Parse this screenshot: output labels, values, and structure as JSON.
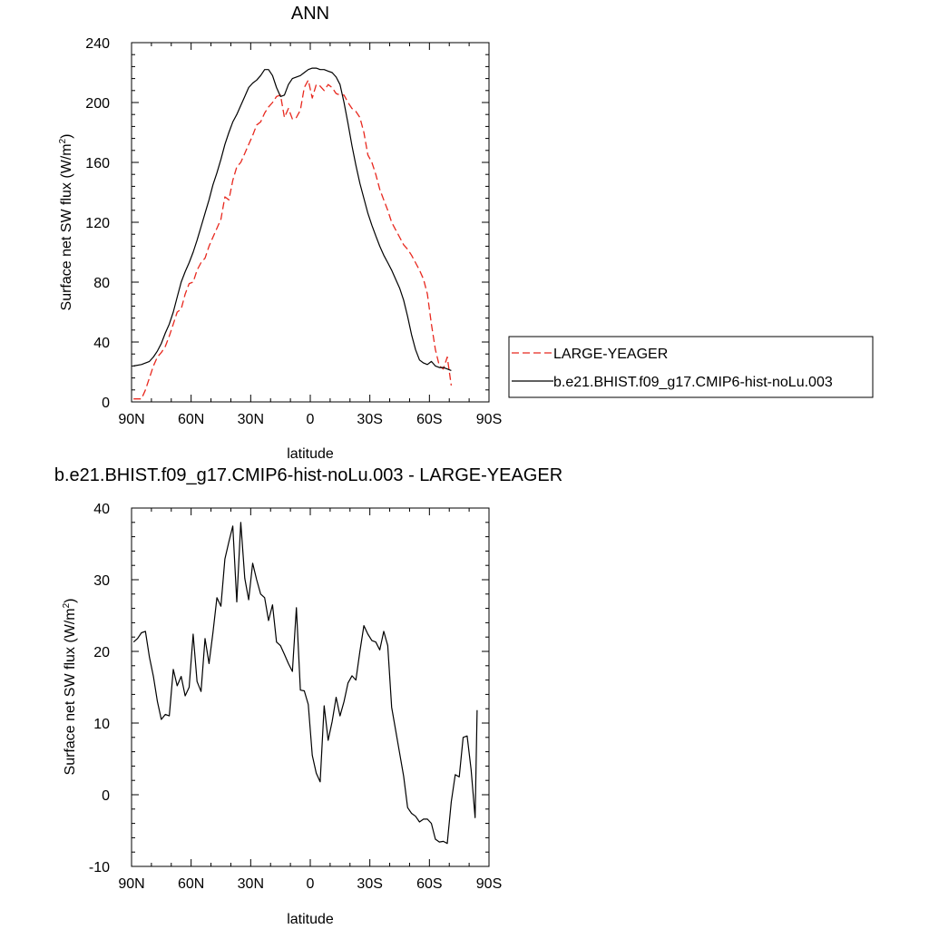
{
  "chart_data": [
    {
      "type": "line",
      "title": "ANN",
      "xlabel": "latitude",
      "ylabel_main": "Surface net SW flux (W/m",
      "ylabel_sup": "2",
      "ylabel_close": ")",
      "xlim": [
        90,
        -90
      ],
      "ylim": [
        0,
        240
      ],
      "x_ticks": [
        90,
        60,
        30,
        0,
        -30,
        -60,
        -90
      ],
      "x_tick_labels": [
        "90N",
        "60N",
        "30N",
        "0",
        "30S",
        "60S",
        "90S"
      ],
      "y_ticks": [
        0,
        40,
        80,
        120,
        160,
        200,
        240
      ],
      "y_tick_labels": [
        "0",
        "40",
        "80",
        "120",
        "160",
        "200",
        "240"
      ],
      "legend_position": "right",
      "series": [
        {
          "name": "LARGE-YEAGER",
          "color": "#e8281e",
          "dash": "dashed",
          "points": [
            [
              89,
              2
            ],
            [
              87,
              2
            ],
            [
              85,
              2
            ],
            [
              83,
              8
            ],
            [
              81,
              16
            ],
            [
              79,
              24
            ],
            [
              77,
              30
            ],
            [
              75,
              33
            ],
            [
              73,
              37
            ],
            [
              71,
              44
            ],
            [
              69,
              52
            ],
            [
              67,
              60
            ],
            [
              65,
              62
            ],
            [
              63,
              72
            ],
            [
              61,
              79
            ],
            [
              59,
              80
            ],
            [
              57,
              88
            ],
            [
              55,
              93
            ],
            [
              53,
              96
            ],
            [
              51,
              104
            ],
            [
              49,
              110
            ],
            [
              47,
              116
            ],
            [
              45,
              122
            ],
            [
              43,
              137
            ],
            [
              41,
              135
            ],
            [
              39,
              148
            ],
            [
              37,
              157
            ],
            [
              35,
              160
            ],
            [
              33,
              166
            ],
            [
              31,
              172
            ],
            [
              29,
              178
            ],
            [
              27,
              185
            ],
            [
              25,
              187
            ],
            [
              23,
              193
            ],
            [
              21,
              197
            ],
            [
              19,
              200
            ],
            [
              17,
              204
            ],
            [
              15,
              205
            ],
            [
              13,
              190
            ],
            [
              11,
              196
            ],
            [
              9,
              189
            ],
            [
              7,
              190
            ],
            [
              5,
              195
            ],
            [
              3,
              210
            ],
            [
              1,
              215
            ],
            [
              -1,
              203
            ],
            [
              -3,
              212
            ],
            [
              -5,
              211
            ],
            [
              -7,
              208
            ],
            [
              -9,
              212
            ],
            [
              -11,
              210
            ],
            [
              -13,
              206
            ],
            [
              -15,
              205
            ],
            [
              -17,
              205
            ],
            [
              -19,
              200
            ],
            [
              -21,
              196
            ],
            [
              -23,
              194
            ],
            [
              -25,
              190
            ],
            [
              -27,
              180
            ],
            [
              -29,
              165
            ],
            [
              -31,
              160
            ],
            [
              -33,
              152
            ],
            [
              -35,
              142
            ],
            [
              -37,
              135
            ],
            [
              -39,
              128
            ],
            [
              -41,
              120
            ],
            [
              -43,
              115
            ],
            [
              -45,
              110
            ],
            [
              -47,
              105
            ],
            [
              -49,
              102
            ],
            [
              -51,
              98
            ],
            [
              -53,
              93
            ],
            [
              -55,
              88
            ],
            [
              -57,
              82
            ],
            [
              -59,
              72
            ],
            [
              -61,
              52
            ],
            [
              -63,
              35
            ],
            [
              -65,
              24
            ],
            [
              -67,
              22
            ],
            [
              -69,
              30
            ],
            [
              -71,
              11
            ]
          ]
        },
        {
          "name": "b.e21.BHIST.f09_g17.CMIP6-hist-noLu.003",
          "color": "#000000",
          "dash": "solid",
          "points": [
            [
              89,
              24
            ],
            [
              85,
              25
            ],
            [
              81,
              27
            ],
            [
              79,
              30
            ],
            [
              77,
              34
            ],
            [
              75,
              39
            ],
            [
              73,
              46
            ],
            [
              71,
              52
            ],
            [
              69,
              60
            ],
            [
              67,
              70
            ],
            [
              65,
              80
            ],
            [
              63,
              87
            ],
            [
              61,
              93
            ],
            [
              59,
              100
            ],
            [
              57,
              108
            ],
            [
              55,
              117
            ],
            [
              53,
              126
            ],
            [
              51,
              135
            ],
            [
              49,
              145
            ],
            [
              47,
              153
            ],
            [
              45,
              162
            ],
            [
              43,
              172
            ],
            [
              41,
              180
            ],
            [
              39,
              187
            ],
            [
              37,
              192
            ],
            [
              35,
              198
            ],
            [
              33,
              204
            ],
            [
              31,
              210
            ],
            [
              29,
              213
            ],
            [
              27,
              215
            ],
            [
              25,
              218
            ],
            [
              23,
              222
            ],
            [
              21,
              222
            ],
            [
              19,
              218
            ],
            [
              17,
              210
            ],
            [
              15,
              204
            ],
            [
              13,
              205
            ],
            [
              11,
              212
            ],
            [
              9,
              216
            ],
            [
              7,
              217
            ],
            [
              5,
              218
            ],
            [
              3,
              220
            ],
            [
              1,
              222
            ],
            [
              -1,
              223
            ],
            [
              -3,
              223
            ],
            [
              -5,
              222
            ],
            [
              -7,
              222
            ],
            [
              -9,
              221
            ],
            [
              -11,
              220
            ],
            [
              -13,
              217
            ],
            [
              -15,
              212
            ],
            [
              -17,
              200
            ],
            [
              -19,
              186
            ],
            [
              -21,
              171
            ],
            [
              -23,
              158
            ],
            [
              -25,
              146
            ],
            [
              -27,
              136
            ],
            [
              -29,
              126
            ],
            [
              -31,
              118
            ],
            [
              -33,
              111
            ],
            [
              -35,
              104
            ],
            [
              -37,
              98
            ],
            [
              -39,
              93
            ],
            [
              -41,
              88
            ],
            [
              -43,
              82
            ],
            [
              -45,
              76
            ],
            [
              -47,
              68
            ],
            [
              -49,
              57
            ],
            [
              -51,
              45
            ],
            [
              -53,
              35
            ],
            [
              -55,
              28
            ],
            [
              -57,
              26
            ],
            [
              -59,
              25
            ],
            [
              -61,
              27
            ],
            [
              -63,
              24
            ],
            [
              -65,
              23
            ],
            [
              -67,
              23
            ],
            [
              -69,
              22
            ],
            [
              -71,
              21
            ]
          ]
        }
      ]
    },
    {
      "type": "line",
      "title": "b.e21.BHIST.f09_g17.CMIP6-hist-noLu.003 - LARGE-YEAGER",
      "xlabel": "latitude",
      "ylabel_main": "Surface net SW flux (W/m",
      "ylabel_sup": "2",
      "ylabel_close": ")",
      "xlim": [
        90,
        -90
      ],
      "ylim": [
        -10,
        40
      ],
      "x_ticks": [
        90,
        60,
        30,
        0,
        -30,
        -60,
        -90
      ],
      "x_tick_labels": [
        "90N",
        "60N",
        "30N",
        "0",
        "30S",
        "60S",
        "90S"
      ],
      "y_ticks": [
        -10,
        0,
        10,
        20,
        30,
        40
      ],
      "y_tick_labels": [
        "-10",
        "0",
        "10",
        "20",
        "30",
        "40"
      ],
      "series": [
        {
          "color": "#000000",
          "dash": "solid",
          "points": [
            [
              89,
              21.3
            ],
            [
              87,
              21.8
            ],
            [
              85,
              22.6
            ],
            [
              83,
              22.8
            ],
            [
              81,
              19.2
            ],
            [
              79,
              16.5
            ],
            [
              77,
              13
            ],
            [
              75,
              10.5
            ],
            [
              73,
              11.2
            ],
            [
              71,
              11.0
            ],
            [
              69,
              17.5
            ],
            [
              67,
              15.2
            ],
            [
              65,
              16.5
            ],
            [
              63,
              13.8
            ],
            [
              61,
              15
            ],
            [
              59,
              22.4
            ],
            [
              57,
              15.8
            ],
            [
              55,
              14.4
            ],
            [
              53,
              21.8
            ],
            [
              51,
              18.3
            ],
            [
              49,
              22.6
            ],
            [
              47,
              27.5
            ],
            [
              45,
              26.3
            ],
            [
              43,
              32.9
            ],
            [
              41,
              35.3
            ],
            [
              39,
              37.5
            ],
            [
              37,
              26.9
            ],
            [
              35,
              38.0
            ],
            [
              33,
              30.2
            ],
            [
              31,
              27.2
            ],
            [
              29,
              32.3
            ],
            [
              27,
              30.0
            ],
            [
              25,
              28.0
            ],
            [
              23,
              27.5
            ],
            [
              21,
              24.3
            ],
            [
              19,
              26.5
            ],
            [
              17,
              21.3
            ],
            [
              15,
              20.8
            ],
            [
              13,
              19.6
            ],
            [
              11,
              18.3
            ],
            [
              9,
              17.2
            ],
            [
              7,
              26.1
            ],
            [
              5,
              14.6
            ],
            [
              3,
              14.5
            ],
            [
              1,
              12.6
            ],
            [
              -1,
              5.5
            ],
            [
              -3,
              3.0
            ],
            [
              -5,
              1.8
            ],
            [
              -7,
              12.4
            ],
            [
              -9,
              7.6
            ],
            [
              -11,
              10.2
            ],
            [
              -13,
              13.6
            ],
            [
              -15,
              11.0
            ],
            [
              -17,
              13.0
            ],
            [
              -19,
              15.6
            ],
            [
              -21,
              16.6
            ],
            [
              -23,
              16.0
            ],
            [
              -25,
              20.0
            ],
            [
              -27,
              23.6
            ],
            [
              -29,
              22.4
            ],
            [
              -31,
              21.5
            ],
            [
              -33,
              21.3
            ],
            [
              -35,
              20.2
            ],
            [
              -37,
              22.8
            ],
            [
              -39,
              20.8
            ],
            [
              -41,
              12.2
            ],
            [
              -43,
              9.0
            ],
            [
              -45,
              5.8
            ],
            [
              -47,
              2.6
            ],
            [
              -49,
              -1.8
            ],
            [
              -51,
              -2.6
            ],
            [
              -53,
              -3.0
            ],
            [
              -55,
              -3.8
            ],
            [
              -57,
              -3.4
            ],
            [
              -59,
              -3.4
            ],
            [
              -61,
              -4.0
            ],
            [
              -63,
              -6.2
            ],
            [
              -65,
              -6.6
            ],
            [
              -67,
              -6.5
            ],
            [
              -69,
              -6.8
            ],
            [
              -71,
              -1.0
            ],
            [
              -73,
              2.8
            ],
            [
              -75,
              2.5
            ],
            [
              -77,
              8.0
            ],
            [
              -79,
              8.2
            ],
            [
              -81,
              3.5
            ],
            [
              -83,
              -3.2
            ],
            [
              -84,
              11.8
            ]
          ]
        }
      ]
    }
  ]
}
